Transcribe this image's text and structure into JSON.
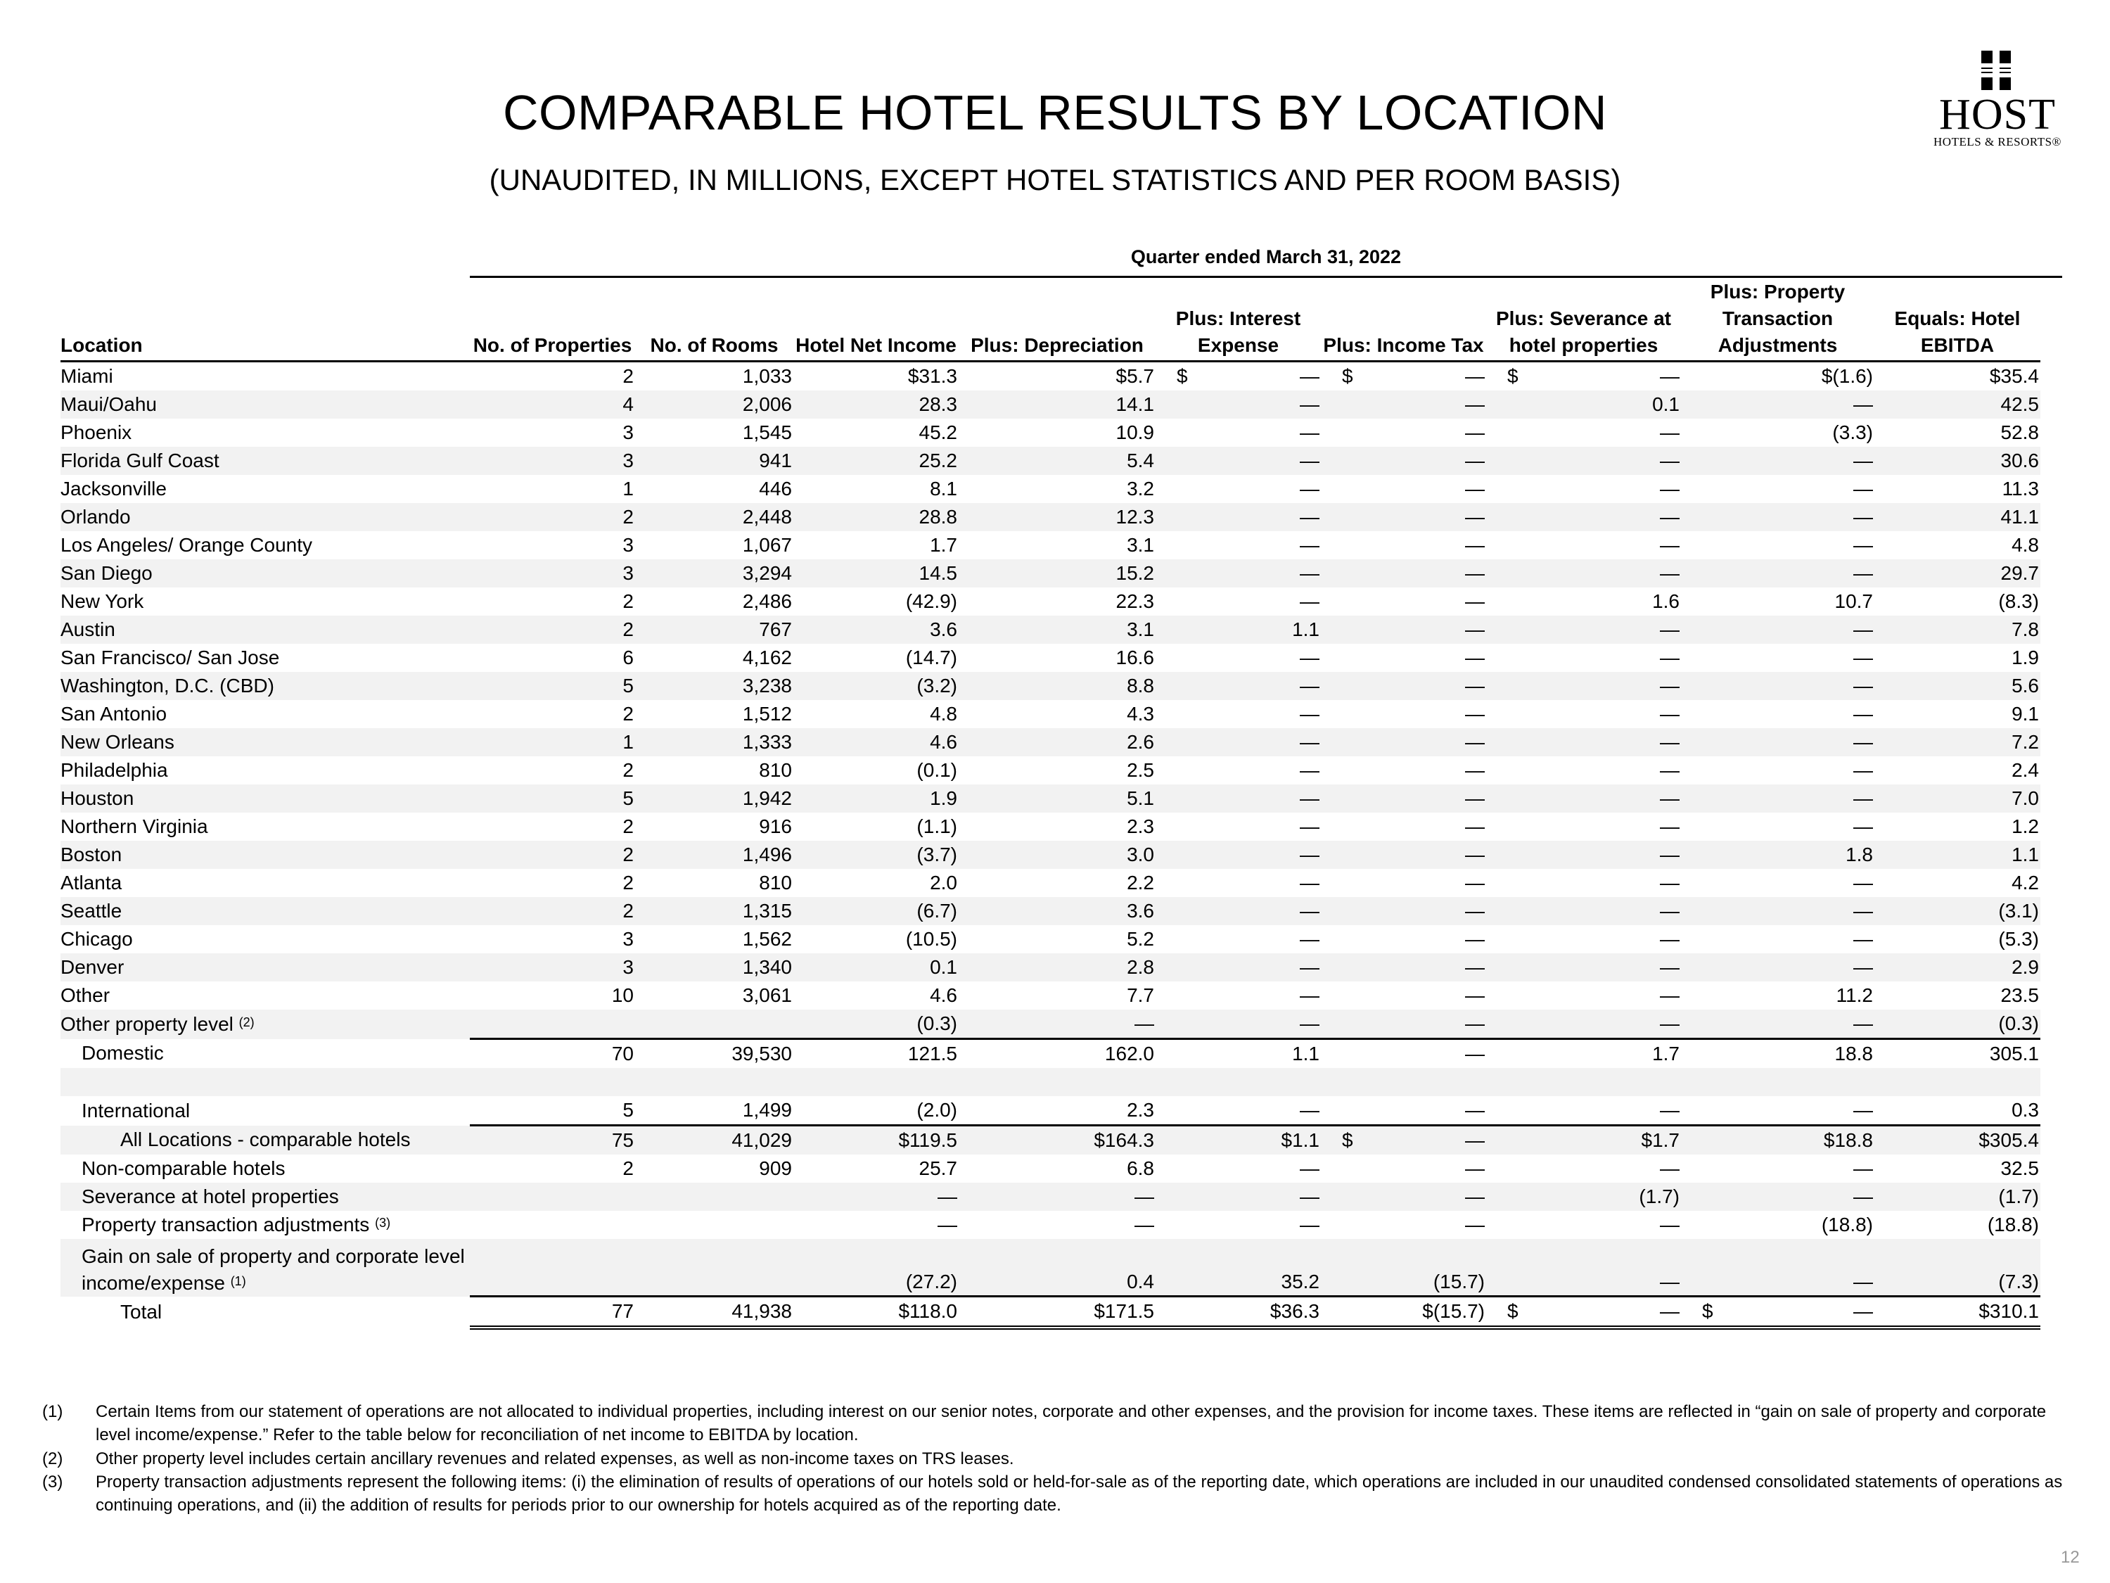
{
  "header": {
    "title": "COMPARABLE HOTEL RESULTS BY LOCATION",
    "subtitle": "(UNAUDITED, IN MILLIONS, EXCEPT HOTEL STATISTICS AND PER ROOM BASIS)"
  },
  "logo": {
    "word": "HOST",
    "tag": "HOTELS & RESORTS®"
  },
  "table": {
    "period": "Quarter ended March 31, 2022",
    "columns": [
      "Location",
      "No. of Properties",
      "No. of Rooms",
      "Hotel Net Income",
      "Plus: Depreciation",
      "Plus: Interest Expense",
      "Plus: Income Tax",
      "Plus: Severance at hotel properties",
      "Plus: Property Transaction Adjustments",
      "Equals: Hotel EBITDA"
    ],
    "rows": [
      {
        "label": "Miami",
        "props": "2",
        "rooms": "1,033",
        "net": "$31.3",
        "dep": "$5.7",
        "int": "—",
        "tax": "—",
        "sev": "—",
        "adj": "$(1.6)",
        "ebitda": "$35.4"
      },
      {
        "label": "Maui/Oahu",
        "props": "4",
        "rooms": "2,006",
        "net": "28.3",
        "dep": "14.1",
        "int": "—",
        "tax": "—",
        "sev": "0.1",
        "adj": "—",
        "ebitda": "42.5"
      },
      {
        "label": "Phoenix",
        "props": "3",
        "rooms": "1,545",
        "net": "45.2",
        "dep": "10.9",
        "int": "—",
        "tax": "—",
        "sev": "—",
        "adj": "(3.3)",
        "ebitda": "52.8"
      },
      {
        "label": "Florida Gulf Coast",
        "props": "3",
        "rooms": "941",
        "net": "25.2",
        "dep": "5.4",
        "int": "—",
        "tax": "—",
        "sev": "—",
        "adj": "—",
        "ebitda": "30.6"
      },
      {
        "label": "Jacksonville",
        "props": "1",
        "rooms": "446",
        "net": "8.1",
        "dep": "3.2",
        "int": "—",
        "tax": "—",
        "sev": "—",
        "adj": "—",
        "ebitda": "11.3"
      },
      {
        "label": "Orlando",
        "props": "2",
        "rooms": "2,448",
        "net": "28.8",
        "dep": "12.3",
        "int": "—",
        "tax": "—",
        "sev": "—",
        "adj": "—",
        "ebitda": "41.1"
      },
      {
        "label": "Los Angeles/ Orange County",
        "props": "3",
        "rooms": "1,067",
        "net": "1.7",
        "dep": "3.1",
        "int": "—",
        "tax": "—",
        "sev": "—",
        "adj": "—",
        "ebitda": "4.8"
      },
      {
        "label": "San Diego",
        "props": "3",
        "rooms": "3,294",
        "net": "14.5",
        "dep": "15.2",
        "int": "—",
        "tax": "—",
        "sev": "—",
        "adj": "—",
        "ebitda": "29.7"
      },
      {
        "label": "New York",
        "props": "2",
        "rooms": "2,486",
        "net": "(42.9)",
        "dep": "22.3",
        "int": "—",
        "tax": "—",
        "sev": "1.6",
        "adj": "10.7",
        "ebitda": "(8.3)"
      },
      {
        "label": "Austin",
        "props": "2",
        "rooms": "767",
        "net": "3.6",
        "dep": "3.1",
        "int": "1.1",
        "tax": "—",
        "sev": "—",
        "adj": "—",
        "ebitda": "7.8"
      },
      {
        "label": "San Francisco/ San Jose",
        "props": "6",
        "rooms": "4,162",
        "net": "(14.7)",
        "dep": "16.6",
        "int": "—",
        "tax": "—",
        "sev": "—",
        "adj": "—",
        "ebitda": "1.9"
      },
      {
        "label": "Washington, D.C. (CBD)",
        "props": "5",
        "rooms": "3,238",
        "net": "(3.2)",
        "dep": "8.8",
        "int": "—",
        "tax": "—",
        "sev": "—",
        "adj": "—",
        "ebitda": "5.6"
      },
      {
        "label": "San Antonio",
        "props": "2",
        "rooms": "1,512",
        "net": "4.8",
        "dep": "4.3",
        "int": "—",
        "tax": "—",
        "sev": "—",
        "adj": "—",
        "ebitda": "9.1"
      },
      {
        "label": "New Orleans",
        "props": "1",
        "rooms": "1,333",
        "net": "4.6",
        "dep": "2.6",
        "int": "—",
        "tax": "—",
        "sev": "—",
        "adj": "—",
        "ebitda": "7.2"
      },
      {
        "label": "Philadelphia",
        "props": "2",
        "rooms": "810",
        "net": "(0.1)",
        "dep": "2.5",
        "int": "—",
        "tax": "—",
        "sev": "—",
        "adj": "—",
        "ebitda": "2.4"
      },
      {
        "label": "Houston",
        "props": "5",
        "rooms": "1,942",
        "net": "1.9",
        "dep": "5.1",
        "int": "—",
        "tax": "—",
        "sev": "—",
        "adj": "—",
        "ebitda": "7.0"
      },
      {
        "label": "Northern Virginia",
        "props": "2",
        "rooms": "916",
        "net": "(1.1)",
        "dep": "2.3",
        "int": "—",
        "tax": "—",
        "sev": "—",
        "adj": "—",
        "ebitda": "1.2"
      },
      {
        "label": "Boston",
        "props": "2",
        "rooms": "1,496",
        "net": "(3.7)",
        "dep": "3.0",
        "int": "—",
        "tax": "—",
        "sev": "—",
        "adj": "1.8",
        "ebitda": "1.1"
      },
      {
        "label": "Atlanta",
        "props": "2",
        "rooms": "810",
        "net": "2.0",
        "dep": "2.2",
        "int": "—",
        "tax": "—",
        "sev": "—",
        "adj": "—",
        "ebitda": "4.2"
      },
      {
        "label": "Seattle",
        "props": "2",
        "rooms": "1,315",
        "net": "(6.7)",
        "dep": "3.6",
        "int": "—",
        "tax": "—",
        "sev": "—",
        "adj": "—",
        "ebitda": "(3.1)"
      },
      {
        "label": "Chicago",
        "props": "3",
        "rooms": "1,562",
        "net": "(10.5)",
        "dep": "5.2",
        "int": "—",
        "tax": "—",
        "sev": "—",
        "adj": "—",
        "ebitda": "(5.3)"
      },
      {
        "label": "Denver",
        "props": "3",
        "rooms": "1,340",
        "net": "0.1",
        "dep": "2.8",
        "int": "—",
        "tax": "—",
        "sev": "—",
        "adj": "—",
        "ebitda": "2.9"
      },
      {
        "label": "Other",
        "props": "10",
        "rooms": "3,061",
        "net": "4.6",
        "dep": "7.7",
        "int": "—",
        "tax": "—",
        "sev": "—",
        "adj": "11.2",
        "ebitda": "23.5"
      },
      {
        "label": "Other property level",
        "sup": "(2)",
        "props": "",
        "rooms": "",
        "net": "(0.3)",
        "dep": "—",
        "int": "—",
        "tax": "—",
        "sev": "—",
        "adj": "—",
        "ebitda": "(0.3)"
      },
      {
        "label": "Domestic",
        "props": "70",
        "rooms": "39,530",
        "net": "121.5",
        "dep": "162.0",
        "int": "1.1",
        "tax": "—",
        "sev": "1.7",
        "adj": "18.8",
        "ebitda": "305.1"
      },
      {
        "label": "",
        "props": "",
        "rooms": "",
        "net": "",
        "dep": "",
        "int": "",
        "tax": "",
        "sev": "",
        "adj": "",
        "ebitda": ""
      },
      {
        "label": "International",
        "props": "5",
        "rooms": "1,499",
        "net": "(2.0)",
        "dep": "2.3",
        "int": "—",
        "tax": "—",
        "sev": "—",
        "adj": "—",
        "ebitda": "0.3"
      },
      {
        "label": "All Locations - comparable hotels",
        "props": "75",
        "rooms": "41,029",
        "net": "$119.5",
        "dep": "$164.3",
        "int": "$1.1",
        "tax": "—",
        "sev": "$1.7",
        "adj": "$18.8",
        "ebitda": "$305.4"
      },
      {
        "label": "Non-comparable hotels",
        "props": "2",
        "rooms": "909",
        "net": "25.7",
        "dep": "6.8",
        "int": "—",
        "tax": "—",
        "sev": "—",
        "adj": "—",
        "ebitda": "32.5"
      },
      {
        "label": "Severance at hotel properties",
        "props": "",
        "rooms": "",
        "net": "—",
        "dep": "—",
        "int": "—",
        "tax": "—",
        "sev": "(1.7)",
        "adj": "—",
        "ebitda": "(1.7)"
      },
      {
        "label": "Property transaction adjustments",
        "sup": "(3)",
        "props": "",
        "rooms": "",
        "net": "—",
        "dep": "—",
        "int": "—",
        "tax": "—",
        "sev": "—",
        "adj": "(18.8)",
        "ebitda": "(18.8)"
      },
      {
        "label": "Gain on sale of property and corporate level income/expense",
        "sup": "(1)",
        "props": "",
        "rooms": "",
        "net": "(27.2)",
        "dep": "0.4",
        "int": "35.2",
        "tax": "(15.7)",
        "sev": "—",
        "adj": "—",
        "ebitda": "(7.3)"
      },
      {
        "label": "Total",
        "props": "77",
        "rooms": "41,938",
        "net": "$118.0",
        "dep": "$171.5",
        "int": "$36.3",
        "tax": "$(15.7)",
        "sev": "—",
        "adj": "—",
        "ebitda": "$310.1"
      }
    ]
  },
  "footnotes": [
    {
      "num": "(1)",
      "text": "Certain Items from our statement of operations are not allocated to individual properties, including interest on our senior notes, corporate and other expenses, and the provision for income taxes. These items are reflected in “gain on sale of property and corporate level income/expense.” Refer to the table below for reconciliation of net income to EBITDA by location."
    },
    {
      "num": "(2)",
      "text": "Other property level includes certain ancillary revenues and related expenses, as well as non-income taxes on TRS leases."
    },
    {
      "num": "(3)",
      "text": "Property transaction adjustments represent the following items: (i) the elimination of results of operations of our hotels sold or held-for-sale as of the reporting date, which operations are included in our unaudited condensed consolidated statements of operations as continuing operations, and (ii) the addition of results for periods prior to our ownership for hotels acquired as of the reporting date."
    }
  ],
  "page_number": "12"
}
